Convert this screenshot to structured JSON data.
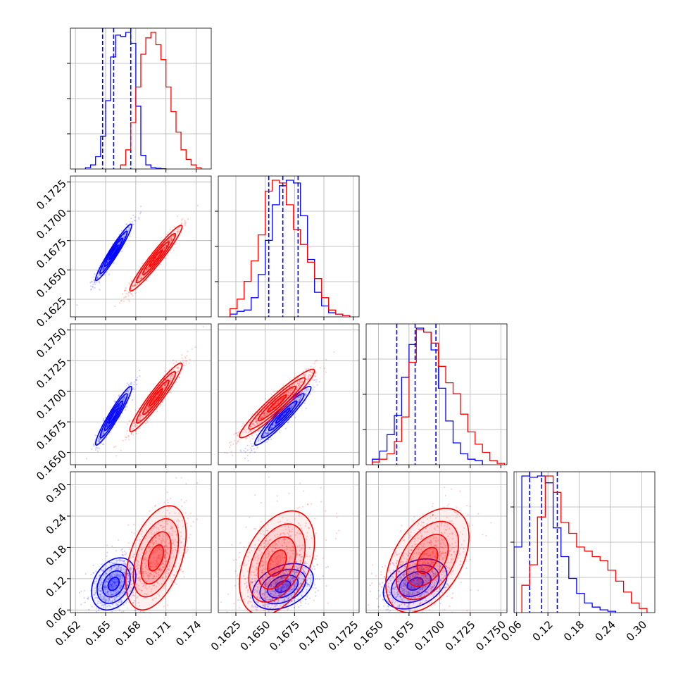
{
  "colors": {
    "blue": "#0000ff",
    "red": "#ff0000",
    "grid": "#b0b0b0",
    "frame": "#000000"
  },
  "chart_data": {
    "type": "corner",
    "grid": true,
    "parameters": [
      {
        "range": [
          0.1615,
          0.1755
        ],
        "ticks": [
          0.162,
          0.165,
          0.168,
          0.171,
          0.174
        ],
        "tick_labels": [
          "0.162",
          "0.165",
          "0.168",
          "0.171",
          "0.174"
        ]
      },
      {
        "range": [
          0.161,
          0.173
        ],
        "ticks": [
          0.1625,
          0.165,
          0.1675,
          0.17,
          0.1725
        ],
        "tick_labels": [
          "0.1625",
          "0.1650",
          "0.1675",
          "0.1700",
          "0.1725"
        ]
      },
      {
        "range": [
          0.164,
          0.1755
        ],
        "ticks": [
          0.165,
          0.1675,
          0.17,
          0.1725,
          0.175
        ],
        "tick_labels": [
          "0.1650",
          "0.1675",
          "0.1700",
          "0.1725",
          "0.1750"
        ]
      },
      {
        "range": [
          0.055,
          0.325
        ],
        "ticks": [
          0.06,
          0.12,
          0.18,
          0.24,
          0.3
        ],
        "tick_labels": [
          "0.06",
          "0.12",
          "0.18",
          "0.24",
          "0.30"
        ]
      }
    ],
    "series": [
      {
        "color": "blue",
        "quantiles": [
          [
            0.1647,
            0.1658,
            0.1675
          ],
          [
            0.1653,
            0.1665,
            0.1678
          ],
          [
            0.1665,
            0.168,
            0.1697
          ],
          [
            0.085,
            0.108,
            0.138
          ]
        ],
        "hist_edges": [
          [
            0.163,
            0.1635,
            0.164,
            0.1645,
            0.165,
            0.1655,
            0.166,
            0.1665,
            0.167,
            0.1675,
            0.168,
            0.1685,
            0.169,
            0.1695,
            0.17,
            0.1705,
            0.171
          ],
          [
            0.162,
            0.1626,
            0.1632,
            0.1638,
            0.1644,
            0.165,
            0.1656,
            0.1662,
            0.1668,
            0.1674,
            0.168,
            0.1686,
            0.1692,
            0.1698,
            0.1704,
            0.171,
            0.1716,
            0.1722
          ],
          [
            0.1645,
            0.1651,
            0.1657,
            0.1663,
            0.1669,
            0.1675,
            0.1681,
            0.1687,
            0.1693,
            0.1699,
            0.1705,
            0.1711,
            0.1717,
            0.1723,
            0.1729,
            0.1735
          ],
          [
            0.055,
            0.07,
            0.085,
            0.1,
            0.115,
            0.13,
            0.145,
            0.16,
            0.175,
            0.19,
            0.205,
            0.22,
            0.235,
            0.25
          ]
        ],
        "hist_counts": [
          [
            1,
            3,
            9,
            24,
            50,
            82,
            98,
            97,
            100,
            92,
            46,
            10,
            3,
            1,
            0.5,
            0.2
          ],
          [
            2,
            4,
            5,
            14,
            31,
            56,
            82,
            96,
            100,
            98,
            74,
            42,
            18,
            8,
            3,
            2,
            1
          ],
          [
            4,
            10,
            22,
            36,
            64,
            88,
            100,
            97,
            84,
            56,
            32,
            16,
            8,
            4,
            3
          ],
          [
            48,
            100,
            99,
            100,
            95,
            62,
            41,
            25,
            14,
            7,
            4,
            2,
            1
          ]
        ]
      },
      {
        "color": "red",
        "quantiles": [],
        "hist_edges": [
          [
            0.1665,
            0.167,
            0.1675,
            0.168,
            0.1685,
            0.169,
            0.1695,
            0.17,
            0.1705,
            0.171,
            0.1715,
            0.172,
            0.1725,
            0.173,
            0.1735,
            0.174,
            0.1745
          ],
          [
            0.162,
            0.1626,
            0.1632,
            0.1638,
            0.1644,
            0.165,
            0.1656,
            0.1662,
            0.1668,
            0.1674,
            0.168,
            0.1686,
            0.1692,
            0.1698,
            0.1704,
            0.171,
            0.1716,
            0.1722
          ],
          [
            0.1645,
            0.1651,
            0.1657,
            0.1663,
            0.1669,
            0.1675,
            0.1681,
            0.1687,
            0.1693,
            0.1699,
            0.1705,
            0.1711,
            0.1717,
            0.1723,
            0.1729,
            0.1735,
            0.1741,
            0.1747,
            0.1753
          ],
          [
            0.07,
            0.085,
            0.1,
            0.115,
            0.13,
            0.145,
            0.16,
            0.175,
            0.19,
            0.205,
            0.22,
            0.235,
            0.25,
            0.265,
            0.28,
            0.295,
            0.31
          ]
        ],
        "hist_counts": [
          [
            3,
            14,
            34,
            60,
            84,
            96,
            100,
            91,
            80,
            60,
            42,
            27,
            14,
            7,
            3,
            1
          ],
          [
            6,
            13,
            26,
            41,
            60,
            92,
            100,
            98,
            82,
            64,
            53,
            40,
            28,
            14,
            5,
            2,
            1
          ],
          [
            2,
            4,
            8,
            17,
            35,
            75,
            99,
            97,
            89,
            72,
            60,
            52,
            37,
            24,
            15,
            9,
            3,
            1
          ],
          [
            20,
            35,
            70,
            100,
            88,
            66,
            58,
            48,
            45,
            41,
            38,
            31,
            23,
            15,
            7,
            3
          ]
        ]
      }
    ],
    "scatter_2d": {
      "blue": {
        "1,0": {
          "mean": [
            0.1658,
            0.1665
          ],
          "sd": [
            0.0009,
            0.0012
          ],
          "rho": 0.96
        },
        "2,0": {
          "mean": [
            0.1658,
            0.168
          ],
          "sd": [
            0.0009,
            0.0012
          ],
          "rho": 0.95
        },
        "2,1": {
          "mean": [
            0.1665,
            0.168
          ],
          "sd": [
            0.0012,
            0.0012
          ],
          "rho": 0.95
        },
        "3,0": {
          "mean": [
            0.1658,
            0.11
          ],
          "sd": [
            0.0011,
            0.025
          ],
          "rho": 0.3
        },
        "3,1": {
          "mean": [
            0.1665,
            0.105
          ],
          "sd": [
            0.0013,
            0.022
          ],
          "rho": 0.35
        },
        "3,2": {
          "mean": [
            0.168,
            0.11
          ],
          "sd": [
            0.0013,
            0.024
          ],
          "rho": 0.35
        }
      },
      "red": {
        "1,0": {
          "mean": [
            0.17,
            0.166
          ],
          "sd": [
            0.0013,
            0.0014
          ],
          "rho": 0.96
        },
        "2,0": {
          "mean": [
            0.17,
            0.1695
          ],
          "sd": [
            0.0013,
            0.0014
          ],
          "rho": 0.95
        },
        "2,1": {
          "mean": [
            0.166,
            0.169
          ],
          "sd": [
            0.0016,
            0.0014
          ],
          "rho": 0.95
        },
        "3,0": {
          "mean": [
            0.17,
            0.16
          ],
          "sd": [
            0.0015,
            0.05
          ],
          "rho": 0.45
        },
        "3,1": {
          "mean": [
            0.166,
            0.15
          ],
          "sd": [
            0.0016,
            0.05
          ],
          "rho": 0.4
        },
        "3,2": {
          "mean": [
            0.169,
            0.155
          ],
          "sd": [
            0.0017,
            0.05
          ],
          "rho": 0.45
        }
      }
    }
  }
}
